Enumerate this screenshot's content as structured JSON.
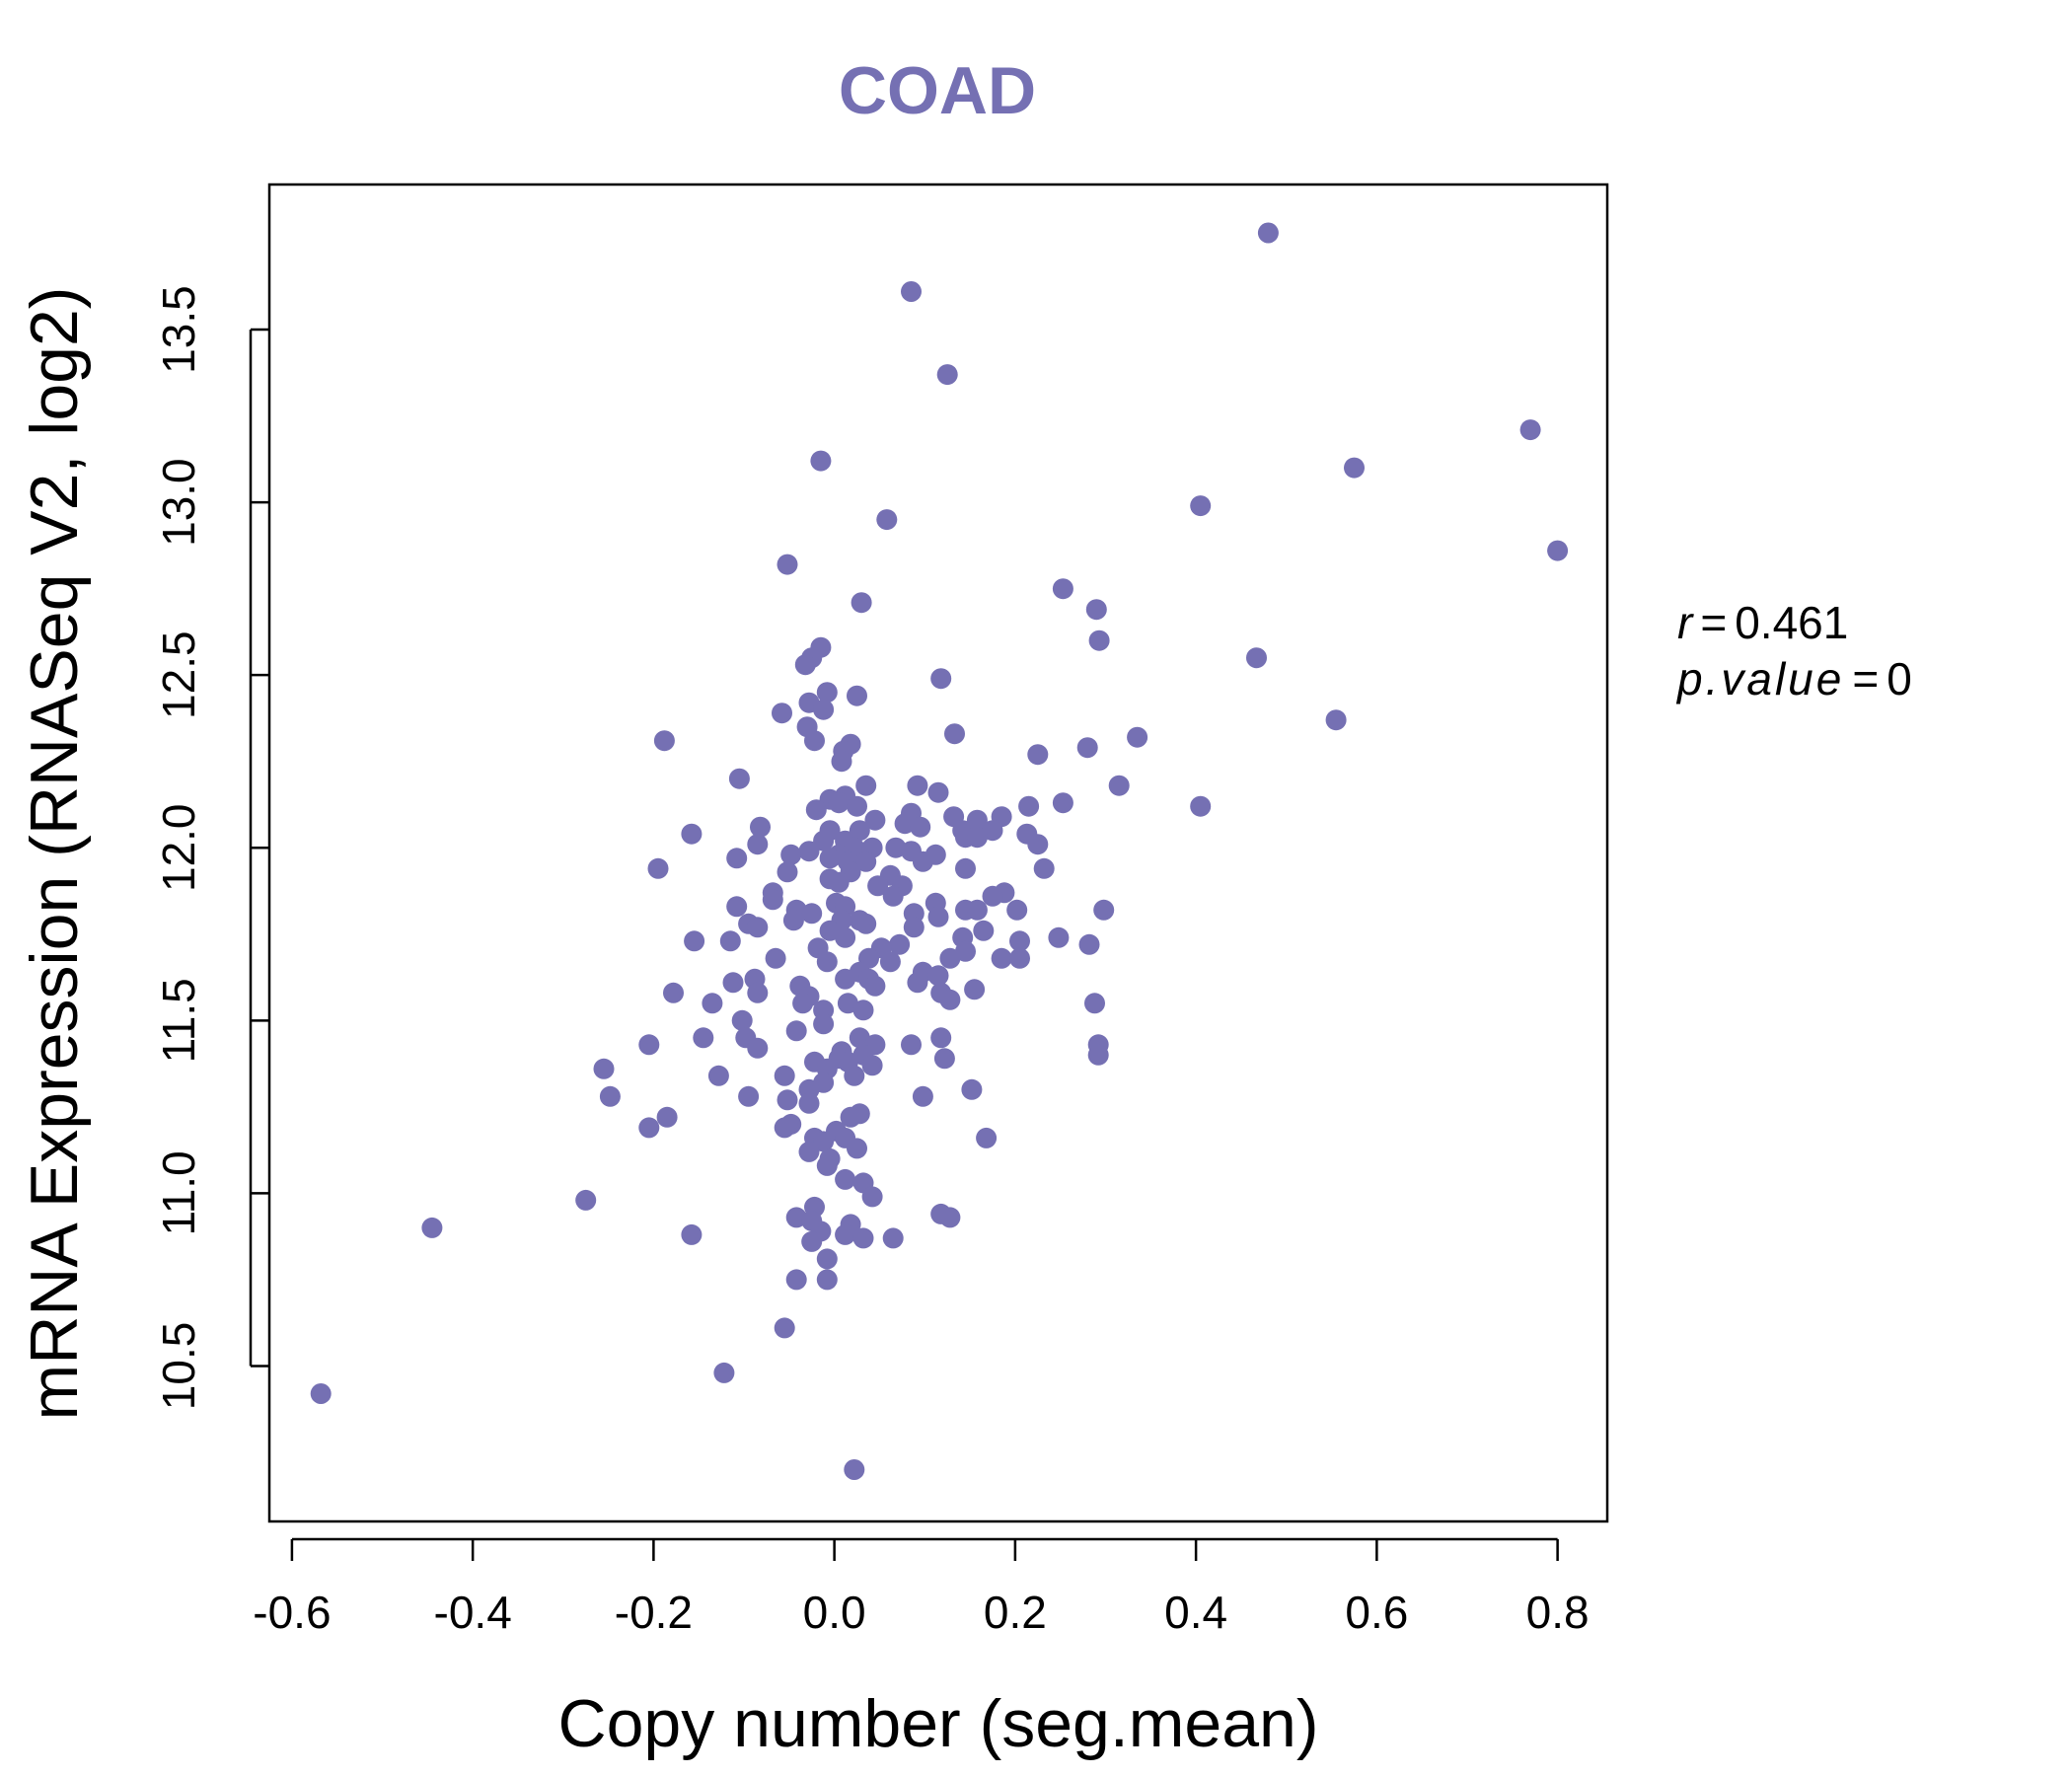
{
  "colors": {
    "point": "#7570b3",
    "title": "#7570b3",
    "axis": "#000000",
    "background": "#ffffff"
  },
  "chart_data": {
    "type": "scatter",
    "title": "COAD",
    "xlabel": "Copy number (seg.mean)",
    "ylabel": "mRNA Expression (RNASeq V2, log2)",
    "xlim": [
      -0.625,
      0.855
    ],
    "ylim": [
      10.05,
      13.92
    ],
    "xticks": [
      -0.6,
      -0.4,
      -0.2,
      0.0,
      0.2,
      0.4,
      0.6,
      0.8
    ],
    "xtick_labels": [
      "-0.6",
      "-0.4",
      "-0.2",
      "0.0",
      "0.2",
      "0.4",
      "0.6",
      "0.8"
    ],
    "yticks": [
      10.5,
      11.0,
      11.5,
      12.0,
      12.5,
      13.0,
      13.5
    ],
    "ytick_labels": [
      "10.5",
      "11.0",
      "11.5",
      "12.0",
      "12.5",
      "13.0",
      "13.5"
    ],
    "grid": false,
    "annotation": {
      "r_label": "r",
      "r_value": "0.461",
      "p_label": "p.value",
      "p_value": "0",
      "eq": "="
    },
    "points": [
      [
        0.48,
        13.78
      ],
      [
        0.085,
        13.61
      ],
      [
        0.125,
        13.37
      ],
      [
        0.77,
        13.21
      ],
      [
        -0.015,
        13.12
      ],
      [
        0.575,
        13.1
      ],
      [
        0.405,
        12.99
      ],
      [
        0.058,
        12.95
      ],
      [
        0.8,
        12.86
      ],
      [
        -0.052,
        12.82
      ],
      [
        0.253,
        12.75
      ],
      [
        0.29,
        12.69
      ],
      [
        0.03,
        12.71
      ],
      [
        0.293,
        12.6
      ],
      [
        -0.015,
        12.58
      ],
      [
        -0.025,
        12.55
      ],
      [
        0.467,
        12.55
      ],
      [
        -0.032,
        12.53
      ],
      [
        0.118,
        12.49
      ],
      [
        -0.008,
        12.45
      ],
      [
        0.025,
        12.44
      ],
      [
        -0.028,
        12.42
      ],
      [
        -0.058,
        12.39
      ],
      [
        -0.012,
        12.4
      ],
      [
        0.555,
        12.37
      ],
      [
        -0.03,
        12.35
      ],
      [
        0.133,
        12.33
      ],
      [
        0.335,
        12.32
      ],
      [
        -0.188,
        12.31
      ],
      [
        -0.022,
        12.31
      ],
      [
        0.018,
        12.3
      ],
      [
        0.01,
        12.28
      ],
      [
        0.28,
        12.29
      ],
      [
        0.225,
        12.27
      ],
      [
        0.008,
        12.25
      ],
      [
        -0.105,
        12.2
      ],
      [
        0.092,
        12.18
      ],
      [
        0.035,
        12.18
      ],
      [
        0.315,
        12.18
      ],
      [
        0.115,
        12.16
      ],
      [
        0.012,
        12.15
      ],
      [
        -0.005,
        12.14
      ],
      [
        0.005,
        12.13
      ],
      [
        0.025,
        12.12
      ],
      [
        -0.02,
        12.11
      ],
      [
        0.405,
        12.12
      ],
      [
        0.253,
        12.13
      ],
      [
        0.215,
        12.12
      ],
      [
        0.085,
        12.1
      ],
      [
        0.132,
        12.09
      ],
      [
        0.185,
        12.09
      ],
      [
        0.158,
        12.08
      ],
      [
        0.045,
        12.08
      ],
      [
        0.078,
        12.07
      ],
      [
        0.095,
        12.06
      ],
      [
        -0.082,
        12.06
      ],
      [
        0.028,
        12.05
      ],
      [
        0.175,
        12.05
      ],
      [
        0.142,
        12.05
      ],
      [
        -0.005,
        12.05
      ],
      [
        0.213,
        12.04
      ],
      [
        -0.158,
        12.04
      ],
      [
        0.145,
        12.03
      ],
      [
        0.158,
        12.03
      ],
      [
        0.012,
        12.02
      ],
      [
        -0.012,
        12.02
      ],
      [
        -0.085,
        12.01
      ],
      [
        0.225,
        12.01
      ],
      [
        0.022,
        12.0
      ],
      [
        0.068,
        12.0
      ],
      [
        0.042,
        12.0
      ],
      [
        0.085,
        11.99
      ],
      [
        -0.028,
        11.99
      ],
      [
        0.005,
        11.98
      ],
      [
        -0.048,
        11.98
      ],
      [
        -0.108,
        11.97
      ],
      [
        0.112,
        11.98
      ],
      [
        -0.005,
        11.97
      ],
      [
        0.015,
        11.96
      ],
      [
        0.035,
        11.96
      ],
      [
        0.098,
        11.96
      ],
      [
        -0.195,
        11.94
      ],
      [
        0.232,
        11.94
      ],
      [
        -0.052,
        11.93
      ],
      [
        0.145,
        11.94
      ],
      [
        0.018,
        11.93
      ],
      [
        0.062,
        11.92
      ],
      [
        -0.005,
        11.91
      ],
      [
        0.005,
        11.9
      ],
      [
        0.048,
        11.89
      ],
      [
        0.075,
        11.89
      ],
      [
        -0.068,
        11.87
      ],
      [
        0.188,
        11.87
      ],
      [
        0.175,
        11.86
      ],
      [
        -0.068,
        11.85
      ],
      [
        0.065,
        11.86
      ],
      [
        0.112,
        11.84
      ],
      [
        0.002,
        11.84
      ],
      [
        0.012,
        11.83
      ],
      [
        0.145,
        11.82
      ],
      [
        -0.108,
        11.83
      ],
      [
        0.298,
        11.82
      ],
      [
        0.202,
        11.82
      ],
      [
        -0.042,
        11.82
      ],
      [
        0.158,
        11.82
      ],
      [
        0.088,
        11.81
      ],
      [
        -0.025,
        11.81
      ],
      [
        0.115,
        11.8
      ],
      [
        0.028,
        11.79
      ],
      [
        -0.045,
        11.79
      ],
      [
        0.008,
        11.79
      ],
      [
        -0.095,
        11.78
      ],
      [
        -0.085,
        11.77
      ],
      [
        0.088,
        11.77
      ],
      [
        0.165,
        11.76
      ],
      [
        -0.005,
        11.76
      ],
      [
        0.035,
        11.78
      ],
      [
        0.248,
        11.74
      ],
      [
        0.012,
        11.74
      ],
      [
        -0.155,
        11.73
      ],
      [
        -0.115,
        11.73
      ],
      [
        0.142,
        11.74
      ],
      [
        0.282,
        11.72
      ],
      [
        0.205,
        11.73
      ],
      [
        -0.018,
        11.71
      ],
      [
        0.072,
        11.72
      ],
      [
        0.052,
        11.71
      ],
      [
        0.145,
        11.7
      ],
      [
        0.128,
        11.68
      ],
      [
        -0.065,
        11.68
      ],
      [
        0.185,
        11.68
      ],
      [
        0.205,
        11.68
      ],
      [
        0.038,
        11.68
      ],
      [
        0.062,
        11.67
      ],
      [
        -0.008,
        11.67
      ],
      [
        0.098,
        11.64
      ],
      [
        0.028,
        11.64
      ],
      [
        -0.088,
        11.62
      ],
      [
        0.115,
        11.63
      ],
      [
        0.038,
        11.62
      ],
      [
        0.012,
        11.62
      ],
      [
        -0.112,
        11.61
      ],
      [
        0.092,
        11.61
      ],
      [
        -0.038,
        11.6
      ],
      [
        0.045,
        11.6
      ],
      [
        0.155,
        11.59
      ],
      [
        0.118,
        11.58
      ],
      [
        -0.178,
        11.58
      ],
      [
        -0.085,
        11.58
      ],
      [
        -0.028,
        11.57
      ],
      [
        0.128,
        11.56
      ],
      [
        -0.135,
        11.55
      ],
      [
        0.288,
        11.55
      ],
      [
        0.015,
        11.55
      ],
      [
        -0.035,
        11.55
      ],
      [
        -0.012,
        11.53
      ],
      [
        0.032,
        11.53
      ],
      [
        -0.102,
        11.5
      ],
      [
        -0.012,
        11.49
      ],
      [
        -0.042,
        11.47
      ],
      [
        0.118,
        11.45
      ],
      [
        -0.145,
        11.45
      ],
      [
        -0.098,
        11.45
      ],
      [
        0.028,
        11.45
      ],
      [
        0.085,
        11.43
      ],
      [
        0.292,
        11.43
      ],
      [
        -0.205,
        11.43
      ],
      [
        0.045,
        11.43
      ],
      [
        -0.085,
        11.42
      ],
      [
        0.008,
        11.41
      ],
      [
        0.292,
        11.4
      ],
      [
        0.032,
        11.4
      ],
      [
        0.005,
        11.39
      ],
      [
        0.122,
        11.39
      ],
      [
        -0.022,
        11.38
      ],
      [
        0.015,
        11.38
      ],
      [
        0.042,
        11.37
      ],
      [
        -0.255,
        11.36
      ],
      [
        -0.008,
        11.36
      ],
      [
        -0.128,
        11.34
      ],
      [
        -0.055,
        11.34
      ],
      [
        0.022,
        11.34
      ],
      [
        -0.012,
        11.32
      ],
      [
        -0.028,
        11.3
      ],
      [
        0.152,
        11.3
      ],
      [
        0.098,
        11.28
      ],
      [
        -0.248,
        11.28
      ],
      [
        -0.095,
        11.28
      ],
      [
        -0.052,
        11.27
      ],
      [
        -0.028,
        11.26
      ],
      [
        0.028,
        11.23
      ],
      [
        0.018,
        11.22
      ],
      [
        -0.185,
        11.22
      ],
      [
        -0.048,
        11.2
      ],
      [
        -0.205,
        11.19
      ],
      [
        -0.055,
        11.19
      ],
      [
        0.002,
        11.18
      ],
      [
        -0.022,
        11.16
      ],
      [
        0.168,
        11.16
      ],
      [
        0.012,
        11.16
      ],
      [
        -0.012,
        11.15
      ],
      [
        0.025,
        11.13
      ],
      [
        -0.028,
        11.12
      ],
      [
        -0.005,
        11.1
      ],
      [
        -0.008,
        11.08
      ],
      [
        0.012,
        11.04
      ],
      [
        0.032,
        11.03
      ],
      [
        0.042,
        10.99
      ],
      [
        -0.275,
        10.98
      ],
      [
        -0.022,
        10.96
      ],
      [
        0.118,
        10.94
      ],
      [
        0.128,
        10.93
      ],
      [
        -0.042,
        10.93
      ],
      [
        -0.025,
        10.92
      ],
      [
        0.018,
        10.91
      ],
      [
        -0.445,
        10.9
      ],
      [
        -0.015,
        10.89
      ],
      [
        0.012,
        10.88
      ],
      [
        -0.158,
        10.88
      ],
      [
        0.032,
        10.87
      ],
      [
        0.065,
        10.87
      ],
      [
        -0.025,
        10.86
      ],
      [
        -0.008,
        10.81
      ],
      [
        -0.042,
        10.75
      ],
      [
        -0.008,
        10.75
      ],
      [
        -0.055,
        10.61
      ],
      [
        -0.122,
        10.48
      ],
      [
        -0.568,
        10.42
      ],
      [
        0.022,
        10.2
      ]
    ]
  }
}
